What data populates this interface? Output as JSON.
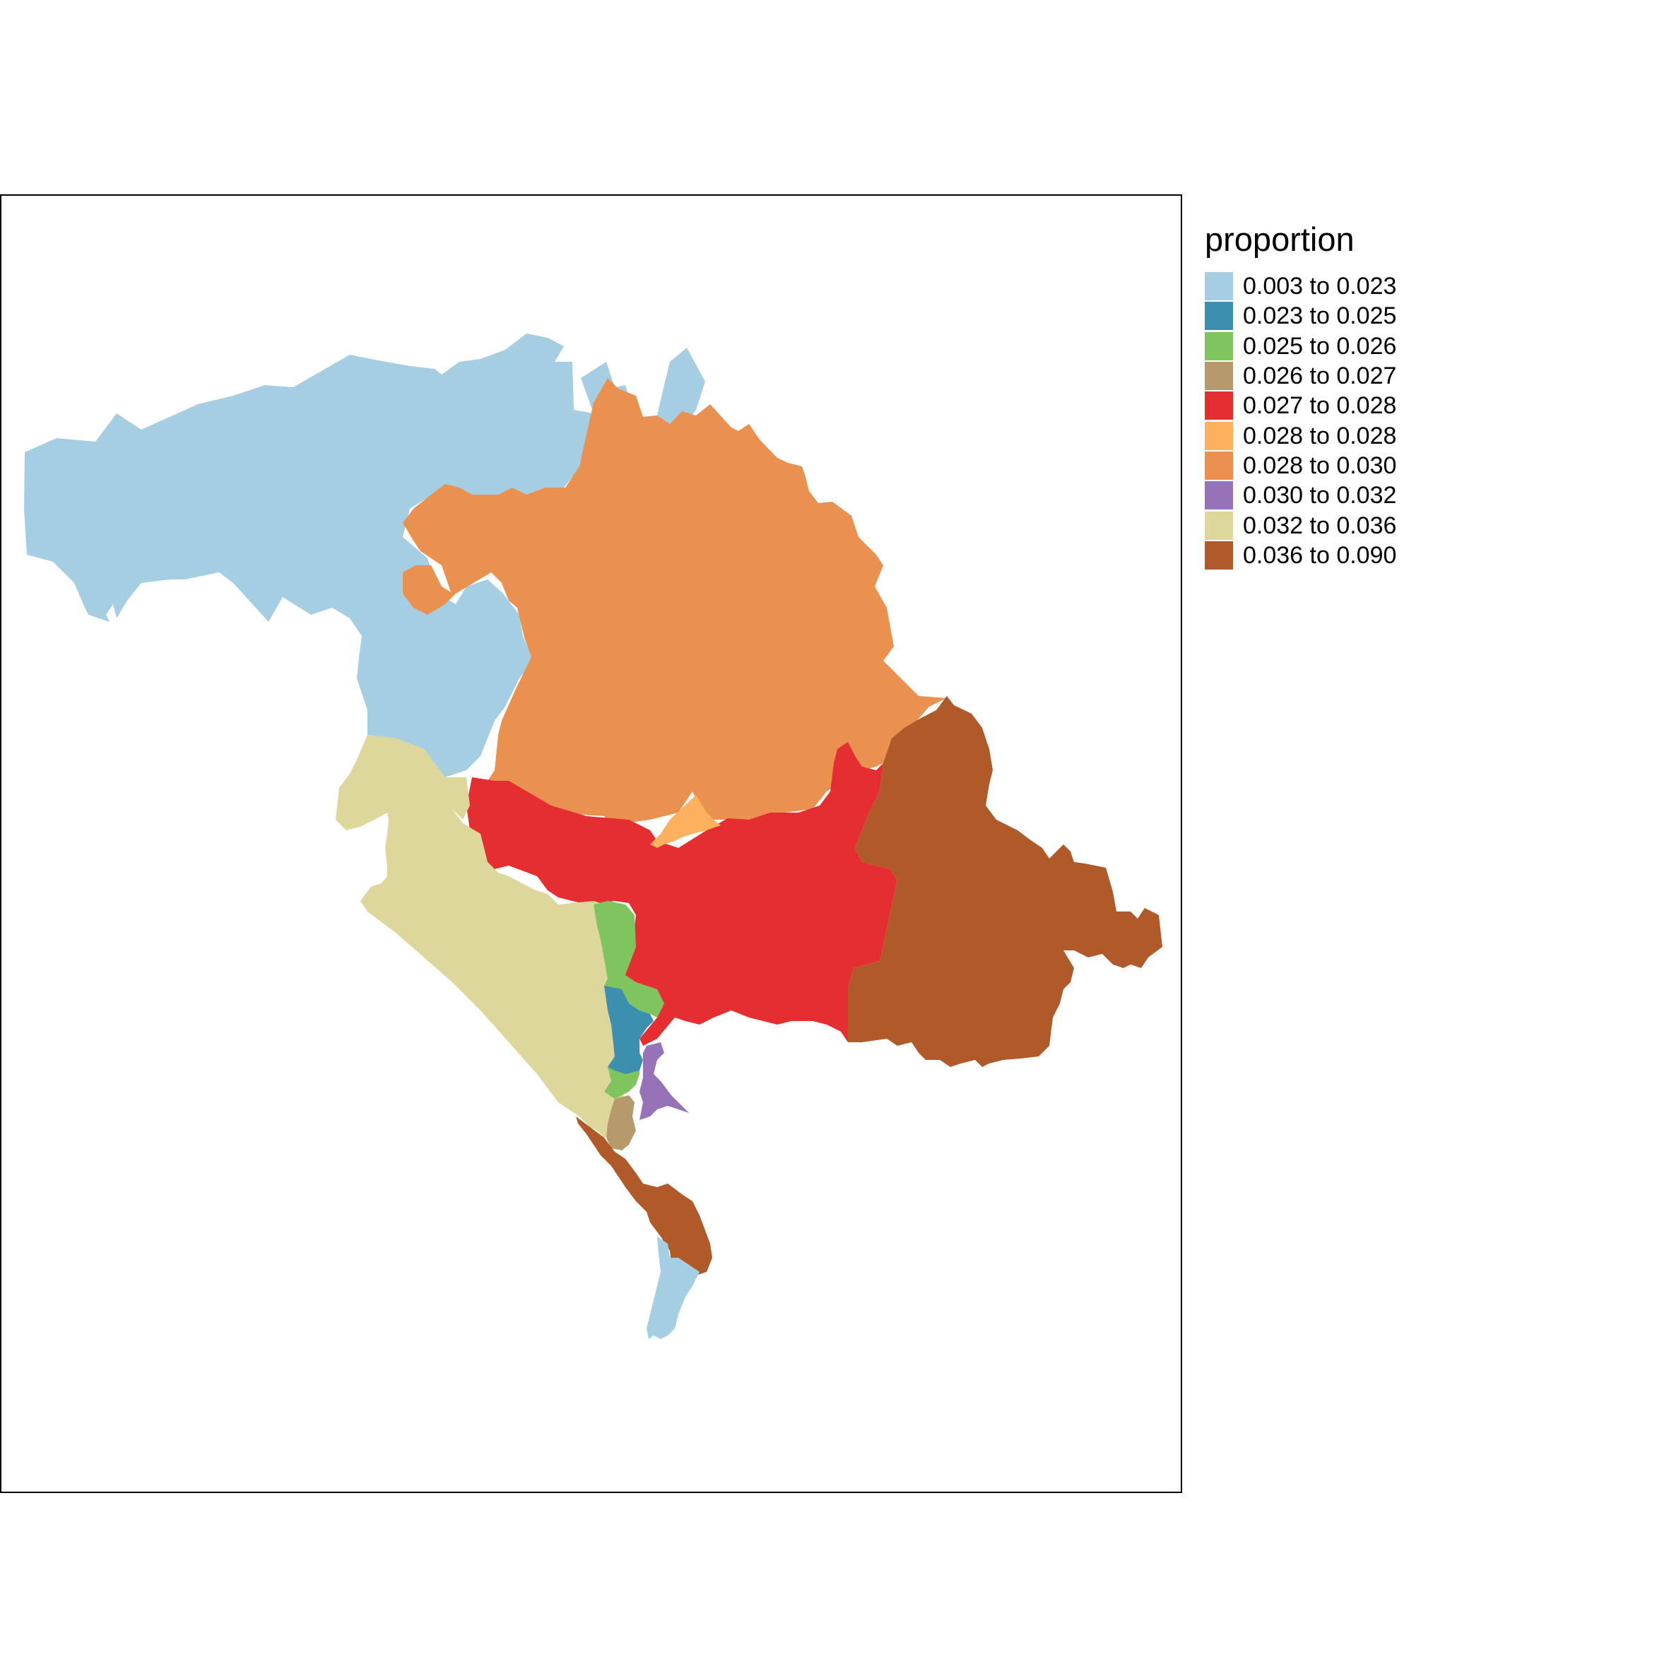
{
  "legend": {
    "title": "proportion",
    "classes": [
      {
        "label": "0.003 to 0.023",
        "color": "#a6cee3"
      },
      {
        "label": "0.023 to 0.025",
        "color": "#3d8fb0"
      },
      {
        "label": "0.025 to 0.026",
        "color": "#7fc45f"
      },
      {
        "label": "0.026 to 0.027",
        "color": "#b69a6c"
      },
      {
        "label": "0.027 to 0.028",
        "color": "#e52e31"
      },
      {
        "label": "0.028 to 0.028",
        "color": "#fdb05e"
      },
      {
        "label": "0.028 to 0.030",
        "color": "#ea9150"
      },
      {
        "label": "0.030 to 0.032",
        "color": "#9673b8"
      },
      {
        "label": "0.032 to 0.036",
        "color": "#ded79b"
      },
      {
        "label": "0.036 to 0.090",
        "color": "#b05a29"
      }
    ]
  },
  "regions": [
    {
      "id": "northwest",
      "class": 0
    },
    {
      "id": "north-central",
      "class": 6
    },
    {
      "id": "central-band",
      "class": 4
    },
    {
      "id": "east",
      "class": 9
    },
    {
      "id": "west-coast",
      "class": 8
    },
    {
      "id": "small-inlet",
      "class": 5
    },
    {
      "id": "green-strip",
      "class": 2
    },
    {
      "id": "blue-strip",
      "class": 1
    },
    {
      "id": "purple-strip",
      "class": 7
    },
    {
      "id": "tan-strip",
      "class": 3
    },
    {
      "id": "peninsula-south",
      "class": 9
    },
    {
      "id": "island-tip",
      "class": 0
    }
  ]
}
